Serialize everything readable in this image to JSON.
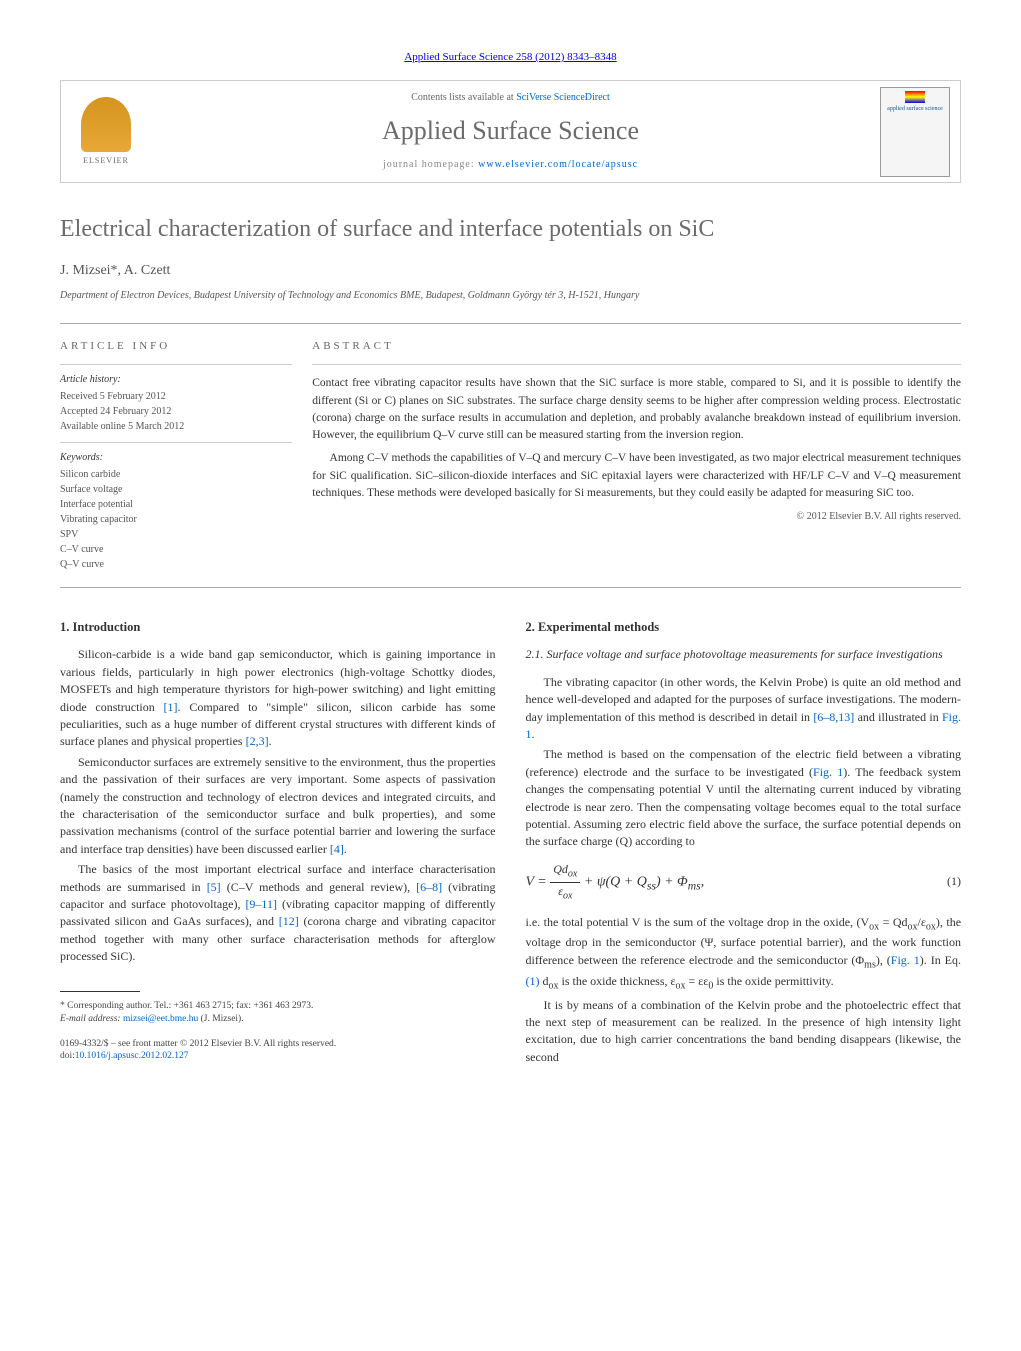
{
  "journal_ref": "Applied Surface Science 258 (2012) 8343–8348",
  "header": {
    "contents_prefix": "Contents lists available at ",
    "contents_link": "SciVerse ScienceDirect",
    "journal_name": "Applied Surface Science",
    "homepage_prefix": "journal homepage: ",
    "homepage_url": "www.elsevier.com/locate/apsusc",
    "publisher_logo_text": "ELSEVIER",
    "cover_title": "applied surface science"
  },
  "title": "Electrical characterization of surface and interface potentials on SiC",
  "authors": "J. Mizsei*, A. Czett",
  "affiliation": "Department of Electron Devices, Budapest University of Technology and Economics BME, Budapest, Goldmann György tér 3, H-1521, Hungary",
  "meta": {
    "info_heading": "ARTICLE INFO",
    "history_heading": "Article history:",
    "history": [
      "Received 5 February 2012",
      "Accepted 24 February 2012",
      "Available online 5 March 2012"
    ],
    "keywords_heading": "Keywords:",
    "keywords": [
      "Silicon carbide",
      "Surface voltage",
      "Interface potential",
      "Vibrating capacitor",
      "SPV",
      "C–V curve",
      "Q–V curve"
    ]
  },
  "abstract": {
    "heading": "ABSTRACT",
    "paragraphs": [
      "Contact free vibrating capacitor results have shown that the SiC surface is more stable, compared to Si, and it is possible to identify the different (Si or C) planes on SiC substrates. The surface charge density seems to be higher after compression welding process. Electrostatic (corona) charge on the surface results in accumulation and depletion, and probably avalanche breakdown instead of equilibrium inversion. However, the equilibrium Q–V curve still can be measured starting from the inversion region.",
      "Among C–V methods the capabilities of V–Q and mercury C–V have been investigated, as two major electrical measurement techniques for SiC qualification. SiC–silicon-dioxide interfaces and SiC epitaxial layers were characterized with HF/LF C–V and V–Q measurement techniques. These methods were developed basically for Si measurements, but they could easily be adapted for measuring SiC too."
    ],
    "copyright": "© 2012 Elsevier B.V. All rights reserved."
  },
  "sections": {
    "intro_title": "1.  Introduction",
    "intro_paragraphs": [
      "Silicon-carbide is a wide band gap semiconductor, which is gaining importance in various fields, particularly in high power electronics (high-voltage Schottky diodes, MOSFETs and high temperature thyristors for high-power switching) and light emitting diode construction <a href='#' data-name='ref-link' data-interactable='true'>[1]</a>. Compared to \"simple\" silicon, silicon carbide has some peculiarities, such as a huge number of different crystal structures with different kinds of surface planes and physical properties <a href='#' data-name='ref-link' data-interactable='true'>[2,3]</a>.",
      "Semiconductor surfaces are extremely sensitive to the environment, thus the properties and the passivation of their surfaces are very important. Some aspects of passivation (namely the construction and technology of electron devices and integrated circuits, and the characterisation of the semiconductor surface and bulk properties), and some passivation mechanisms (control of the surface potential barrier and lowering the surface and interface trap densities) have been discussed earlier <a href='#' data-name='ref-link' data-interactable='true'>[4]</a>.",
      "The basics of the most important electrical surface and interface characterisation methods are summarised in <a href='#' data-name='ref-link' data-interactable='true'>[5]</a> (C–V methods and general review), <a href='#' data-name='ref-link' data-interactable='true'>[6–8]</a> (vibrating capacitor and surface photovoltage), <a href='#' data-name='ref-link' data-interactable='true'>[9–11]</a> (vibrating capacitor mapping of differently passivated silicon and GaAs surfaces), and <a href='#' data-name='ref-link' data-interactable='true'>[12]</a> (corona charge and vibrating capacitor method together with many other surface characterisation methods for afterglow processed SiC)."
    ],
    "methods_title": "2.  Experimental methods",
    "sub21_title": "2.1.  Surface voltage and surface photovoltage measurements for surface investigations",
    "sub21_paragraphs": [
      "The vibrating capacitor (in other words, the Kelvin Probe) is quite an old method and hence well-developed and adapted for the purposes of surface investigations. The modern-day implementation of this method is described in detail in <a href='#' data-name='ref-link' data-interactable='true'>[6–8,13]</a> and illustrated in <a href='#' data-name='fig-link' data-interactable='true'>Fig. 1</a>.",
      "The method is based on the compensation of the electric field between a vibrating (reference) electrode and the surface to be investigated (<a href='#' data-name='fig-link' data-interactable='true'>Fig. 1</a>). The feedback system changes the compensating potential V until the alternating current induced by vibrating electrode is near zero. Then the compensating voltage becomes equal to the total surface potential. Assuming zero electric field above the surface, the surface potential depends on the surface charge (Q) according to"
    ],
    "eq1_post": "i.e. the total potential V is the sum of the voltage drop in the oxide, (V<sub>ox</sub> = Qd<sub>ox</sub>/ε<sub>ox</sub>), the voltage drop in the semiconductor (Ψ, surface potential barrier), and the work function difference between the reference electrode and the semiconductor (Φ<sub>ms</sub>), (<a href='#' data-name='fig-link' data-interactable='true'>Fig. 1</a>). In Eq. <a href='#' data-name='eq-link' data-interactable='true'>(1)</a> d<sub>ox</sub> is the oxide thickness, ε<sub>ox</sub> = εε<sub>0</sub> is the oxide permittivity.",
    "sub21_para3": "It is by means of a combination of the Kelvin probe and the photoelectric effect that the next step of measurement can be realized. In the presence of high intensity light excitation, due to high carrier concentrations the band bending disappears (likewise, the second"
  },
  "equation": {
    "num_label": "(1)"
  },
  "footnote": {
    "corr_author": "* Corresponding author. Tel.: +361 463 2715; fax: +361 463 2973.",
    "email_label": "E-mail address: ",
    "email": "mizsei@eet.bme.hu",
    "email_suffix": " (J. Mizsei)."
  },
  "doi": {
    "line1": "0169-4332/$ – see front matter © 2012 Elsevier B.V. All rights reserved.",
    "line2_prefix": "doi:",
    "line2_link": "10.1016/j.apsusc.2012.02.127"
  },
  "colors": {
    "link": "#0066cc",
    "heading_gray": "#6b6b6b",
    "rule": "#aaaaaa"
  }
}
